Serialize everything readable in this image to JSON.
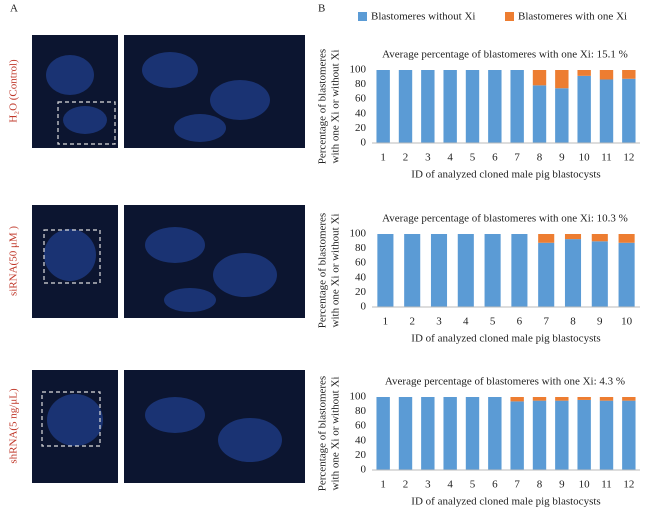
{
  "panel_labels": [
    "A",
    "B"
  ],
  "image_labels": [
    "H₂O (Control)",
    "siRNA(50 μM )",
    "shRNA(5 ng/μL)"
  ],
  "chart_data": [
    {
      "type": "bar",
      "stacked": true,
      "title": "Average percentage of blastomeres with one Xi: 15.1 %",
      "ylabel": [
        "Percentage of blastomeres",
        "with one Xi or without Xi"
      ],
      "xlabel": "ID of analyzed cloned male pig blastocysts",
      "categories": [
        "1",
        "2",
        "3",
        "4",
        "5",
        "6",
        "7",
        "8",
        "9",
        "10",
        "11",
        "12"
      ],
      "series": [
        {
          "name": "Blastomeres without Xi",
          "color": "#5b9bd5",
          "values": [
            100,
            100,
            100,
            100,
            100,
            100,
            100,
            79,
            75,
            92,
            87,
            88
          ]
        },
        {
          "name": "Blastomeres with one Xi",
          "color": "#ed7d31",
          "values": [
            0,
            0,
            0,
            0,
            0,
            0,
            0,
            21,
            25,
            8,
            13,
            12
          ]
        }
      ],
      "ylim": [
        0,
        100
      ],
      "yticks": [
        0,
        20,
        40,
        60,
        80,
        100
      ]
    },
    {
      "type": "bar",
      "stacked": true,
      "title": "Average percentage of blastomeres with one Xi: 10.3 %",
      "ylabel": [
        "Percentage of blastomeres",
        "with one Xi or without Xi"
      ],
      "xlabel": "ID of analyzed cloned male pig blastocysts",
      "categories": [
        "1",
        "2",
        "3",
        "4",
        "5",
        "6",
        "7",
        "8",
        "9",
        "10"
      ],
      "series": [
        {
          "color": "#5b9bd5",
          "values": [
            100,
            100,
            100,
            100,
            100,
            100,
            88,
            93,
            90,
            88
          ]
        },
        {
          "color": "#ed7d31",
          "values": [
            0,
            0,
            0,
            0,
            0,
            0,
            12,
            7,
            10,
            12
          ]
        }
      ],
      "ylim": [
        0,
        100
      ],
      "yticks": [
        0,
        20,
        40,
        60,
        80,
        100
      ]
    },
    {
      "type": "bar",
      "stacked": true,
      "title": "Average percentage of blastomeres with one Xi: 4.3 %",
      "ylabel": [
        "Percentage of blastomeres",
        "with one Xi or without Xi"
      ],
      "xlabel": "ID of analyzed cloned male pig blastocysts",
      "categories": [
        "1",
        "2",
        "3",
        "4",
        "5",
        "6",
        "7",
        "8",
        "9",
        "10",
        "11",
        "12"
      ],
      "series": [
        {
          "color": "#5b9bd5",
          "values": [
            100,
            100,
            100,
            100,
            100,
            100,
            94,
            95,
            95,
            96,
            95,
            95
          ]
        },
        {
          "color": "#ed7d31",
          "values": [
            0,
            0,
            0,
            0,
            0,
            0,
            6,
            5,
            5,
            4,
            5,
            5
          ]
        }
      ],
      "ylim": [
        0,
        100
      ],
      "yticks": [
        0,
        20,
        40,
        60,
        80,
        100
      ]
    }
  ]
}
